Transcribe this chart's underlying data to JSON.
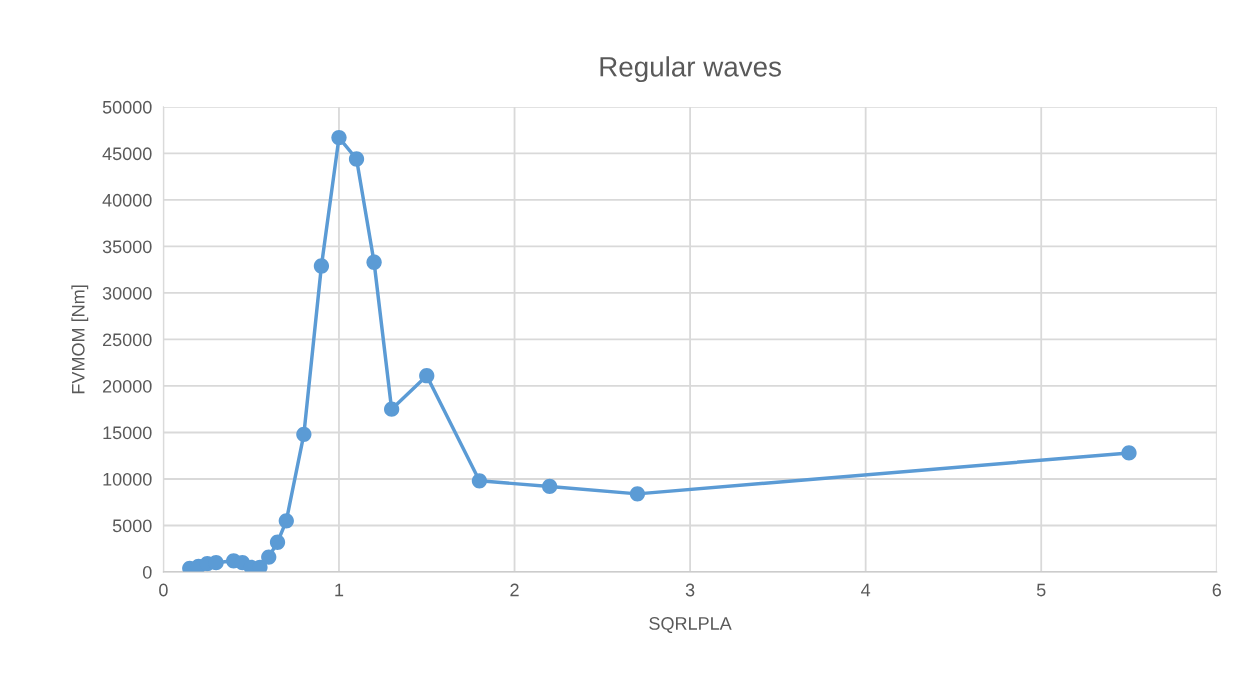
{
  "chart_data": {
    "type": "line",
    "title": "Regular waves",
    "xlabel": "SQRLPLA",
    "ylabel": "FVMOM [Nm]",
    "x": [
      0.15,
      0.2,
      0.25,
      0.3,
      0.4,
      0.45,
      0.5,
      0.55,
      0.6,
      0.65,
      0.7,
      0.8,
      0.9,
      1.0,
      1.1,
      1.2,
      1.3,
      1.5,
      1.8,
      2.2,
      2.7,
      5.5
    ],
    "series": [
      {
        "color": "#5b9bd5",
        "values": [
          400,
          600,
          900,
          1000,
          1200,
          1000,
          500,
          500,
          1600,
          3200,
          5500,
          14800,
          32900,
          46700,
          44400,
          33300,
          17500,
          21100,
          9800,
          9200,
          8400,
          12800
        ]
      }
    ],
    "xlim": [
      0,
      6
    ],
    "xticks": [
      0,
      1,
      2,
      3,
      4,
      5,
      6
    ],
    "ylim": [
      0,
      50000
    ],
    "yticks": [
      0,
      5000,
      10000,
      15000,
      20000,
      25000,
      30000,
      35000,
      40000,
      45000,
      50000
    ],
    "grid": true,
    "marker": "circle",
    "line_style": "solid"
  }
}
